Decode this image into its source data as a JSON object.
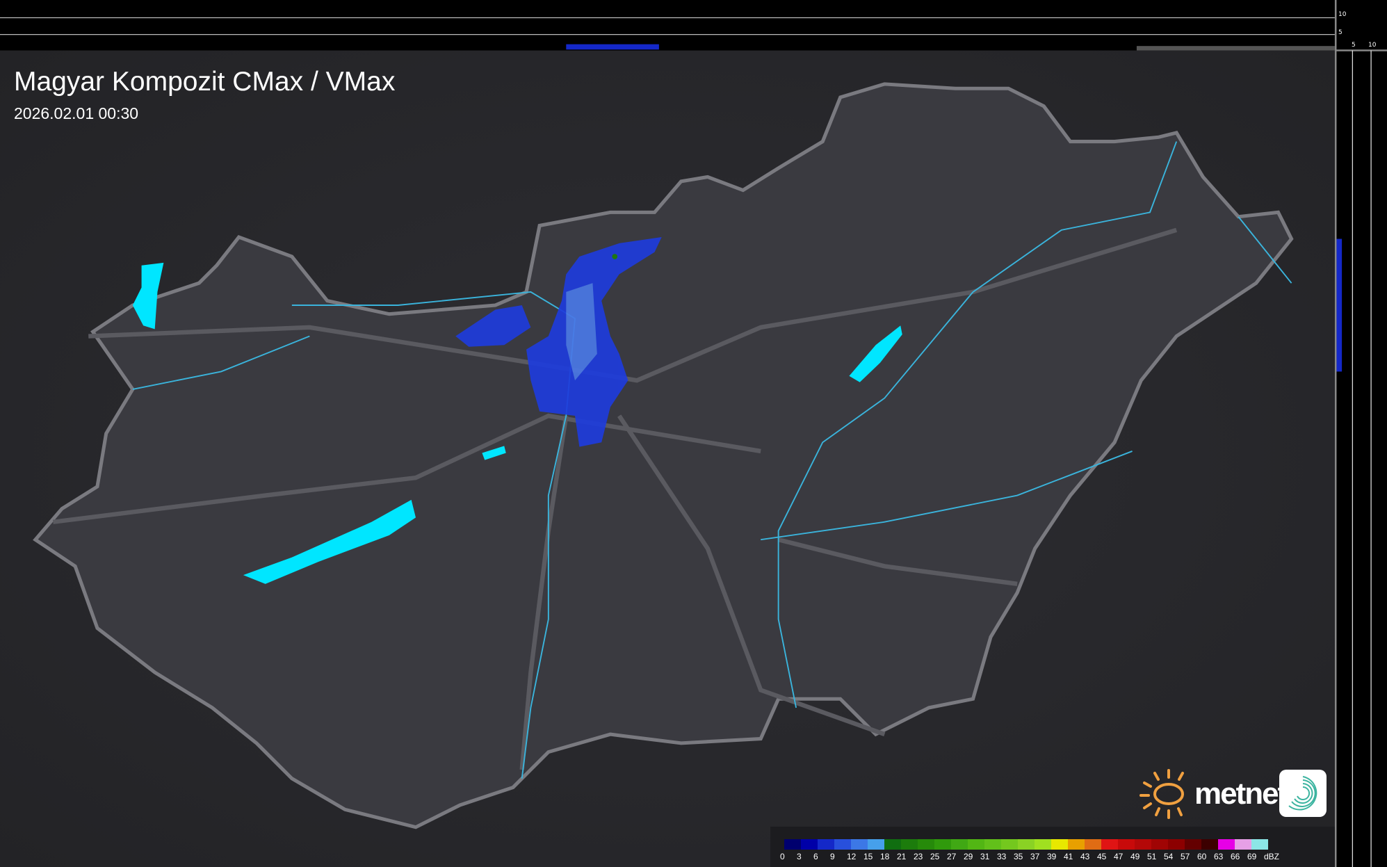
{
  "header": {
    "title": "Magyar Kompozit CMax / VMax",
    "timestamp": "2026.02.01 00:30"
  },
  "profile_axes": {
    "top_ticks": [
      "10",
      "5"
    ],
    "right_ticks": [
      "5",
      "10"
    ]
  },
  "legend": {
    "unit": "dBZ",
    "ticks": [
      "0",
      "3",
      "6",
      "9",
      "12",
      "15",
      "18",
      "21",
      "23",
      "25",
      "27",
      "29",
      "31",
      "33",
      "35",
      "37",
      "39",
      "41",
      "43",
      "45",
      "47",
      "49",
      "51",
      "54",
      "57",
      "60",
      "63",
      "66",
      "69"
    ],
    "colors": [
      "#00006e",
      "#0000a8",
      "#1428c8",
      "#2850dc",
      "#3c78e6",
      "#46a0eb",
      "#106e10",
      "#1c7c0c",
      "#268a0a",
      "#309a0c",
      "#40a814",
      "#52b614",
      "#62c01a",
      "#74c81e",
      "#8ad224",
      "#a0e020",
      "#e8e800",
      "#e8a000",
      "#e06c14",
      "#e01414",
      "#c80a0a",
      "#b40808",
      "#a00404",
      "#8c0000",
      "#640000",
      "#3c0000",
      "#e600e6",
      "#e6a0e6",
      "#8ce6e6"
    ]
  },
  "branding": {
    "logo_text": "metnet",
    "colors": {
      "sun": "#f0a040",
      "app": "#3cb4a0"
    }
  },
  "colors": {
    "land": "#3a3a40",
    "border": "#7a7a80",
    "river": "#3ab4dc",
    "lake": "#00e6ff",
    "radar": "#1e3cdc"
  }
}
